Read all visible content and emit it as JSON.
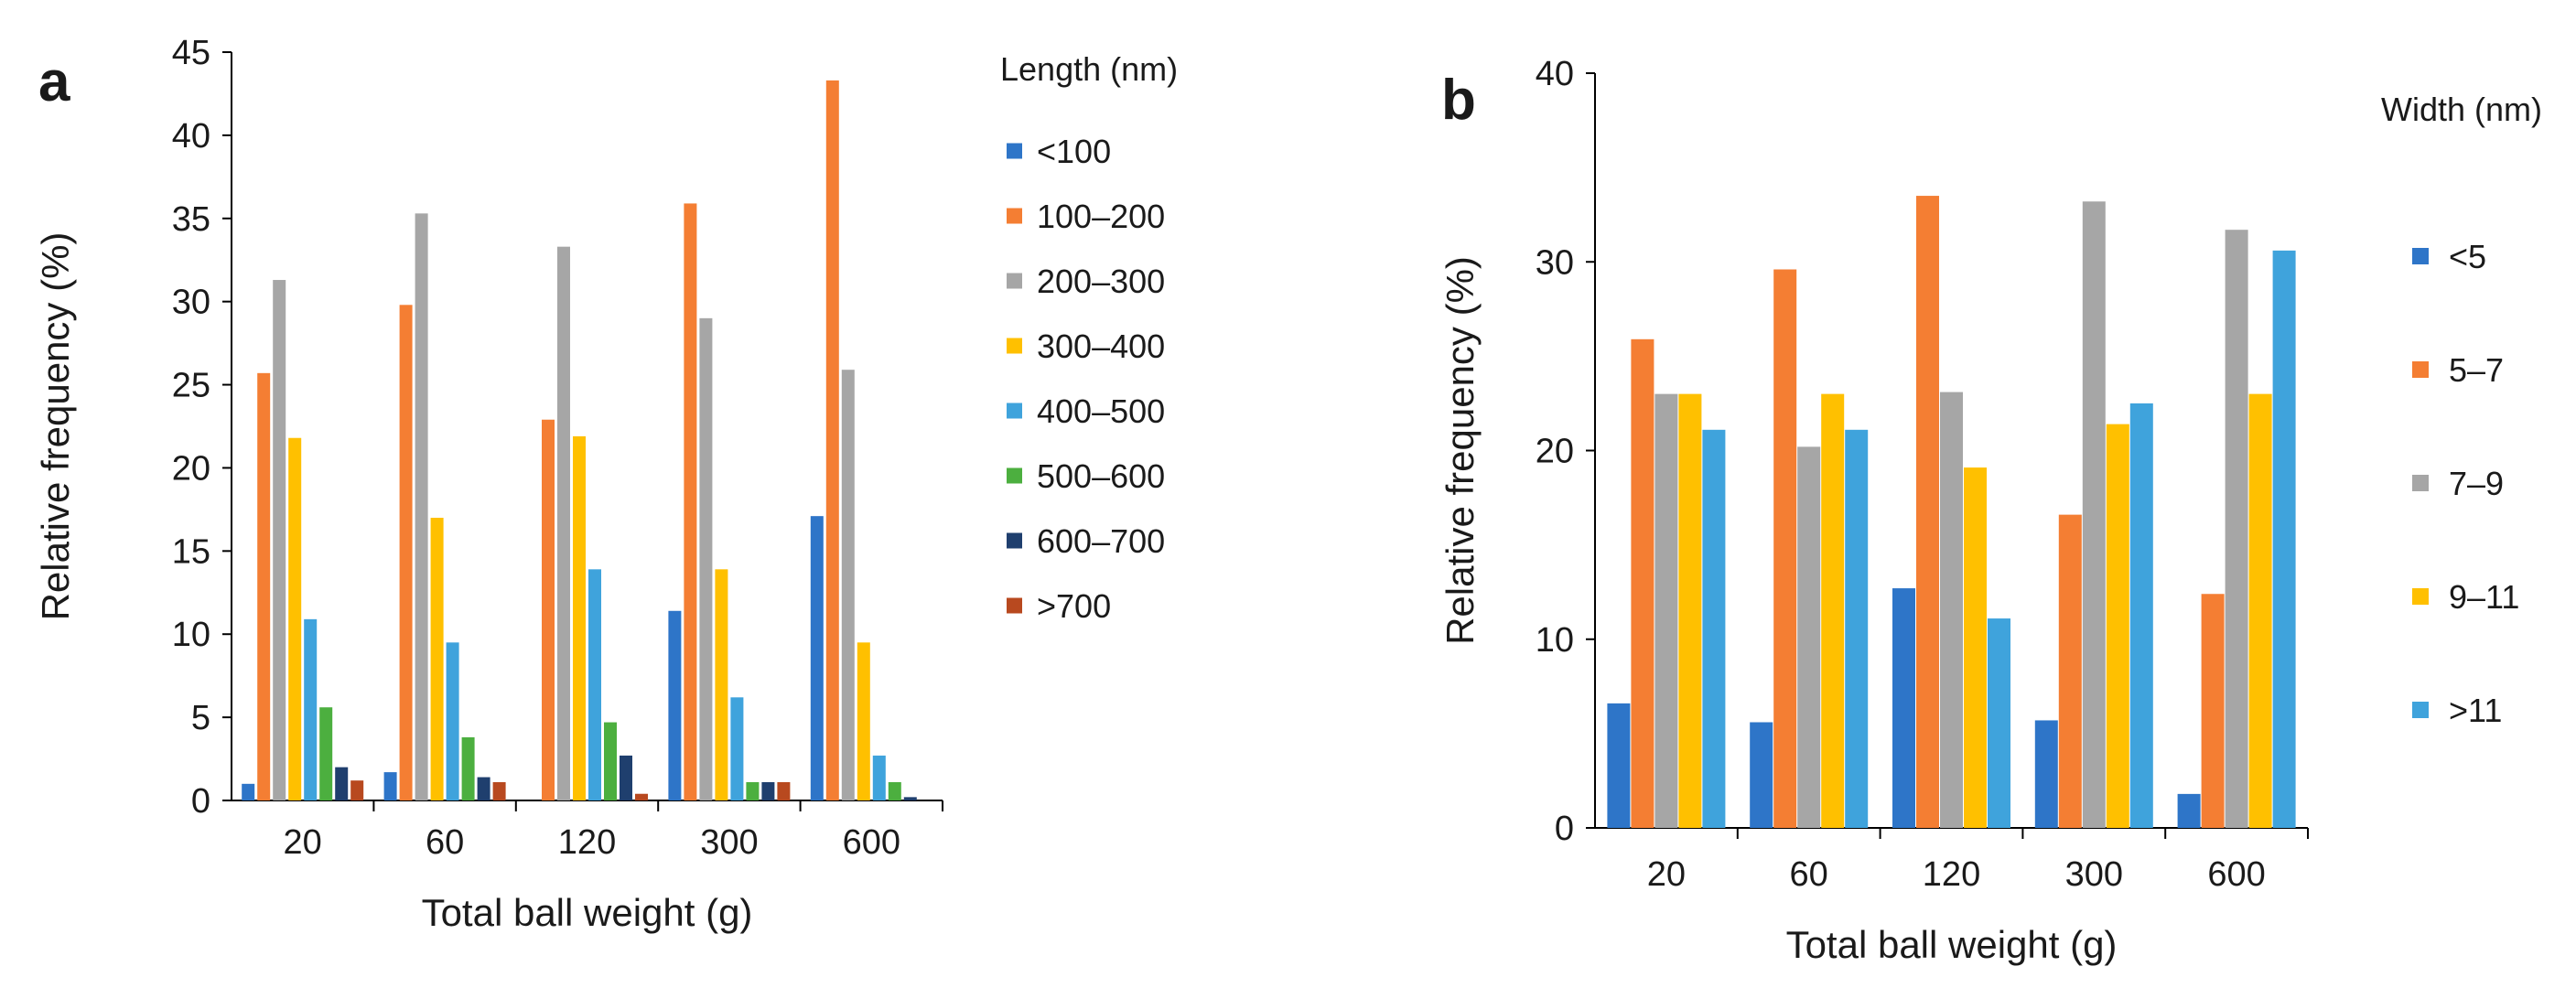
{
  "chart_data": [
    {
      "type": "bar",
      "panel_label": "a",
      "title": "",
      "xlabel": "Total ball weight (g)",
      "ylabel": "Relative frequency (%)",
      "ylim": [
        0,
        45
      ],
      "yticks": [
        0,
        5,
        10,
        15,
        20,
        25,
        30,
        35,
        40,
        45
      ],
      "grid": false,
      "legend_title": "Length (nm)",
      "legend_position": "right",
      "categories": [
        "20",
        "60",
        "120",
        "300",
        "600"
      ],
      "series": [
        {
          "name": "<100",
          "color": "#2e75c8",
          "values": [
            1.0,
            1.7,
            0,
            11.4,
            17.1
          ]
        },
        {
          "name": "100–200",
          "color": "#f47e33",
          "values": [
            25.7,
            29.8,
            22.9,
            35.9,
            43.3
          ]
        },
        {
          "name": "200–300",
          "color": "#a6a6a6",
          "values": [
            31.3,
            35.3,
            33.3,
            29.0,
            25.9
          ]
        },
        {
          "name": "300–400",
          "color": "#ffc000",
          "values": [
            21.8,
            17.0,
            21.9,
            13.9,
            9.5
          ]
        },
        {
          "name": "400–500",
          "color": "#3fa3dc",
          "values": [
            10.9,
            9.5,
            13.9,
            6.2,
            2.7
          ]
        },
        {
          "name": "500–600",
          "color": "#4caf3f",
          "values": [
            5.6,
            3.8,
            4.7,
            1.1,
            1.1
          ]
        },
        {
          "name": "600–700",
          "color": "#1f3f6e",
          "values": [
            2.0,
            1.4,
            2.7,
            1.1,
            0.2
          ]
        },
        {
          "name": ">700",
          "color": "#b8491f",
          "values": [
            1.2,
            1.1,
            0.4,
            1.1,
            0
          ]
        }
      ]
    },
    {
      "type": "bar",
      "panel_label": "b",
      "title": "",
      "xlabel": "Total ball weight (g)",
      "ylabel": "Relative frequency (%)",
      "ylim": [
        0,
        40
      ],
      "yticks": [
        0,
        10,
        20,
        30,
        40
      ],
      "grid": false,
      "legend_title": "Width (nm)",
      "legend_position": "right",
      "categories": [
        "20",
        "60",
        "120",
        "300",
        "600"
      ],
      "series": [
        {
          "name": "<5",
          "color": "#2e75c8",
          "values": [
            6.6,
            5.6,
            12.7,
            5.7,
            1.8
          ]
        },
        {
          "name": "5–7",
          "color": "#f47e33",
          "values": [
            25.9,
            29.6,
            33.5,
            16.6,
            12.4
          ]
        },
        {
          "name": "7–9",
          "color": "#a6a6a6",
          "values": [
            23.0,
            20.2,
            23.1,
            33.2,
            31.7
          ]
        },
        {
          "name": "9–11",
          "color": "#ffc000",
          "values": [
            23.0,
            23.0,
            19.1,
            21.4,
            23.0
          ]
        },
        {
          "name": ">11",
          "color": "#3fa3dc",
          "values": [
            21.1,
            21.1,
            11.1,
            22.5,
            30.6
          ]
        }
      ]
    }
  ]
}
